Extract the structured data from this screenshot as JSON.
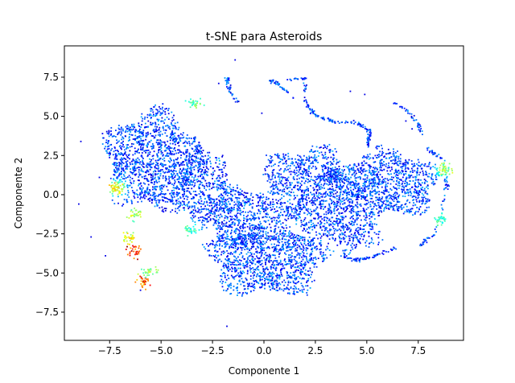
{
  "chart_data": {
    "type": "scatter",
    "title": "t-SNE para Asteroids",
    "xlabel": "Componente 1",
    "ylabel": "Componente 2",
    "xlim": [
      -9.7,
      9.7
    ],
    "ylim": [
      -9.3,
      9.5
    ],
    "xticks": [
      -7.5,
      -5.0,
      -2.5,
      0.0,
      2.5,
      5.0,
      7.5
    ],
    "yticks": [
      -7.5,
      -5.0,
      -2.5,
      0.0,
      2.5,
      5.0,
      7.5
    ],
    "xtick_labels": [
      "−7.5",
      "−5.0",
      "−2.5",
      "0.0",
      "2.5",
      "5.0",
      "7.5"
    ],
    "ytick_labels": [
      "−7.5",
      "−5.0",
      "−2.5",
      "0.0",
      "2.5",
      "5.0",
      "7.5"
    ],
    "grid": false,
    "legend": false,
    "colormap": "jet",
    "colors": {
      "low": "#0000ff",
      "mid_low": "#0080ff",
      "mid": "#00e5ff",
      "mid_high": "#80ff80",
      "high": "#ffee00",
      "max": "#ff0000"
    },
    "clusters": [
      {
        "cx": -5.4,
        "cy": 2.2,
        "rx": 2.7,
        "ry": 3.6,
        "count": 1400
      },
      {
        "cx": -3.0,
        "cy": 0.4,
        "rx": 1.6,
        "ry": 2.6,
        "count": 500
      },
      {
        "cx": 0.2,
        "cy": -4.1,
        "rx": 3.2,
        "ry": 2.7,
        "count": 1300
      },
      {
        "cx": -1.3,
        "cy": -1.4,
        "rx": 1.6,
        "ry": 2.2,
        "count": 500
      },
      {
        "cx": 2.1,
        "cy": 0.4,
        "rx": 2.6,
        "ry": 3.0,
        "count": 1100
      },
      {
        "cx": 5.9,
        "cy": 0.7,
        "rx": 3.0,
        "ry": 2.4,
        "count": 1100
      },
      {
        "cx": 4.3,
        "cy": -2.2,
        "rx": 1.6,
        "ry": 1.6,
        "count": 300
      }
    ],
    "strands": [
      {
        "points": [
          [
            -1.8,
            7.5
          ],
          [
            -1.6,
            6.5
          ],
          [
            -1.1,
            5.5
          ]
        ],
        "count": 40
      },
      {
        "points": [
          [
            1.2,
            7.4
          ],
          [
            2.0,
            7.4
          ],
          [
            2.0,
            5.8
          ],
          [
            2.6,
            5.0
          ],
          [
            3.5,
            4.6
          ],
          [
            4.5,
            4.6
          ],
          [
            5.2,
            4.0
          ],
          [
            5.0,
            3.1
          ]
        ],
        "count": 160
      },
      {
        "points": [
          [
            0.3,
            7.3
          ],
          [
            0.8,
            7.0
          ],
          [
            1.4,
            6.2
          ]
        ],
        "count": 40
      },
      {
        "points": [
          [
            6.3,
            5.9
          ],
          [
            7.0,
            5.3
          ],
          [
            7.5,
            4.5
          ],
          [
            7.7,
            3.8
          ]
        ],
        "count": 40
      },
      {
        "points": [
          [
            3.8,
            -3.9
          ],
          [
            4.5,
            -4.2
          ],
          [
            5.4,
            -3.9
          ],
          [
            6.6,
            -3.3
          ]
        ],
        "count": 70
      },
      {
        "points": [
          [
            7.9,
            3.0
          ],
          [
            8.7,
            2.2
          ],
          [
            8.9,
            0.5
          ],
          [
            8.3,
            -2.5
          ],
          [
            7.6,
            -3.2
          ]
        ],
        "count": 90
      }
    ],
    "hot_spots": [
      {
        "x": -6.3,
        "y": -3.6,
        "level": 1.0
      },
      {
        "x": -5.8,
        "y": -5.6,
        "level": 0.95
      },
      {
        "x": -6.6,
        "y": -2.7,
        "level": 0.7
      },
      {
        "x": -7.2,
        "y": 0.4,
        "level": 0.72
      },
      {
        "x": -6.2,
        "y": -1.2,
        "level": 0.62
      },
      {
        "x": -3.4,
        "y": 5.8,
        "level": 0.55
      },
      {
        "x": -5.6,
        "y": -4.9,
        "level": 0.6
      },
      {
        "x": 8.8,
        "y": 1.6,
        "level": 0.6
      },
      {
        "x": 8.6,
        "y": -1.6,
        "level": 0.5
      },
      {
        "x": -3.5,
        "y": -2.2,
        "level": 0.5
      }
    ],
    "outliers": [
      [
        -1.4,
        8.6
      ],
      [
        -9.0,
        -0.6
      ],
      [
        -8.4,
        -2.7
      ],
      [
        -7.7,
        -3.9
      ],
      [
        -6.0,
        -6.1
      ],
      [
        -1.8,
        -8.4
      ],
      [
        4.2,
        6.6
      ],
      [
        4.9,
        6.4
      ],
      [
        6.9,
        4.7
      ],
      [
        -2.2,
        7.1
      ],
      [
        -8.9,
        3.4
      ],
      [
        7.2,
        4.2
      ],
      [
        -0.1,
        5.2
      ],
      [
        -8.0,
        1.1
      ]
    ]
  }
}
